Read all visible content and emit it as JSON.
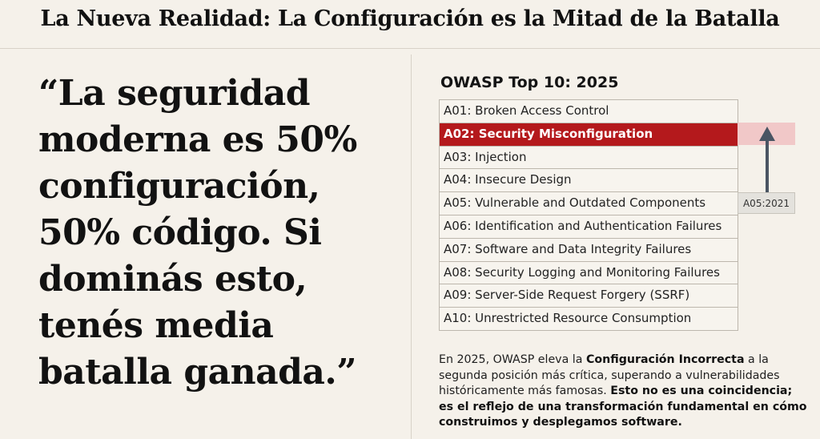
{
  "header": {
    "title": "La Nueva Realidad: La Configuración es la Mitad de la Batalla"
  },
  "quote": {
    "text": "“La seguridad moderna es 50% configuración, 50% código. Si dominás esto, tenés media batalla ganada.”"
  },
  "owasp": {
    "title": "OWASP Top 10: 2025",
    "items": [
      "A01: Broken Access Control",
      "A02: Security Misconfiguration",
      "A03: Injection",
      "A04: Insecure Design",
      "A05: Vulnerable and Outdated Components",
      "A06: Identification and Authentication Failures",
      "A07: Software and Data Integrity Failures",
      "A08: Security Logging and Monitoring Failures",
      "A09: Server-Side Request Forgery (SSRF)",
      "A10: Unrestricted Resource Consumption"
    ],
    "highlight_index": 1,
    "previous_label": "A05:2021"
  },
  "paragraph": {
    "p1": "En 2025, OWASP eleva la ",
    "b1": "Configuración Incorrecta",
    "p2": " a la segunda posición más crítica, superando a vulnerabilidades históricamente más famosas. ",
    "b2": "Esto no es una coincidencia; es el reflejo de una transformación fundamental en cómo construimos y desplegamos software."
  },
  "colors": {
    "accent": "#b4191c",
    "highlight_band": "#f1c8c8",
    "arrow": "#4a5563",
    "background": "#f5f1ea"
  },
  "icons": {
    "arrow": "arrow-up-icon"
  }
}
